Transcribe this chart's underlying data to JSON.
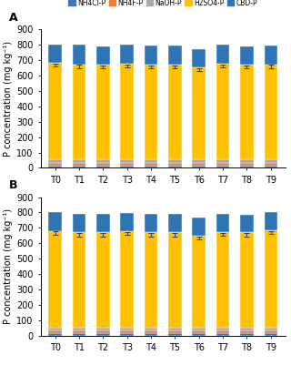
{
  "categories": [
    "T0",
    "T1",
    "T2",
    "T3",
    "T4",
    "T5",
    "T6",
    "T7",
    "T8",
    "T9"
  ],
  "panel_A": {
    "NH4Cl_P": [
      15,
      15,
      15,
      15,
      15,
      15,
      15,
      15,
      15,
      15
    ],
    "NH4F_P": [
      18,
      18,
      18,
      18,
      18,
      18,
      18,
      18,
      18,
      18
    ],
    "NaOH_P": [
      20,
      20,
      20,
      20,
      20,
      20,
      20,
      20,
      20,
      20
    ],
    "H2SO4_P": [
      630,
      620,
      618,
      625,
      618,
      618,
      598,
      622,
      617,
      620
    ],
    "CBD_P": [
      118,
      125,
      118,
      120,
      122,
      122,
      122,
      125,
      120,
      122
    ]
  },
  "panel_B": {
    "NH4Cl_P": [
      15,
      15,
      15,
      15,
      15,
      15,
      15,
      15,
      15,
      15
    ],
    "NH4F_P": [
      18,
      18,
      18,
      18,
      18,
      18,
      18,
      18,
      18,
      18
    ],
    "NaOH_P": [
      20,
      20,
      20,
      20,
      20,
      20,
      20,
      20,
      20,
      20
    ],
    "H2SO4_P": [
      628,
      618,
      618,
      625,
      618,
      618,
      598,
      620,
      617,
      632
    ],
    "CBD_P": [
      120,
      120,
      118,
      120,
      122,
      122,
      118,
      120,
      118,
      118
    ]
  },
  "colors": {
    "NH4Cl_P": "#4472C4",
    "NH4F_P": "#ED7D31",
    "NaOH_P": "#A9A9A9",
    "H2SO4_P": "#FFC000",
    "CBD_P": "#2E75B6"
  },
  "legend_labels": [
    "NH4Cl-P",
    "NH4F-P",
    "NaOH-P",
    "H2SO4-P",
    "CBD-P"
  ],
  "ylabel": "P concentration (mg kg⁻¹)",
  "ylim": [
    0,
    900
  ],
  "yticks": [
    0,
    100,
    200,
    300,
    400,
    500,
    600,
    700,
    800,
    900
  ],
  "label_A": "A",
  "label_B": "B",
  "error_bar_color": "#444444",
  "error_A_pos": [
    668,
    658,
    656,
    663,
    656,
    656,
    636,
    660,
    655,
    658
  ],
  "error_A_val": [
    10,
    10,
    10,
    10,
    10,
    10,
    10,
    10,
    10,
    10
  ],
  "error_B_pos": [
    666,
    656,
    656,
    663,
    656,
    656,
    636,
    658,
    655,
    670
  ],
  "error_B_val": [
    10,
    10,
    10,
    10,
    10,
    10,
    10,
    10,
    10,
    10
  ],
  "fig_width": 3.2,
  "fig_height": 4.01,
  "bar_width": 0.55
}
